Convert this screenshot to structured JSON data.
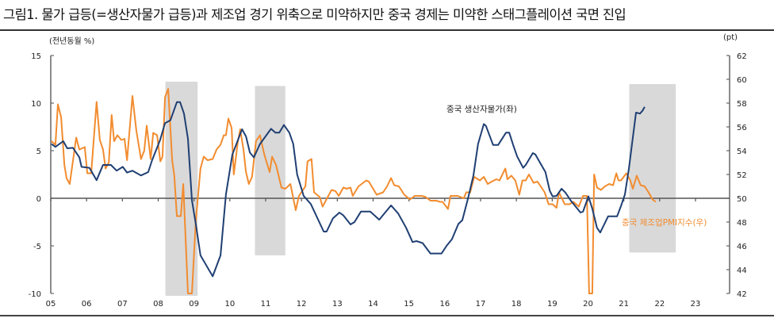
{
  "title": "그림1. 물가 급등(=생산자물가 급등)과 제조업 경기 위축으로 미약하지만 중국 경제는 미약한 스태그플레이션 국면 진입",
  "chart_data": {
    "type": "line",
    "title": "그림1. 물가 급등(=생산자물가 급등)과 제조업 경기 위축으로 미약하지만 중국 경제는 미약한 스태그플레이션 국면 진입",
    "ylabel_left": "(전년동월 %)",
    "ylabel_right": "(pt)",
    "xlim": [
      2005,
      2023
    ],
    "ylim_left": [
      -10,
      15
    ],
    "ylim_right": [
      42,
      62
    ],
    "x_ticks": [
      "05",
      "06",
      "07",
      "08",
      "09",
      "10",
      "11",
      "12",
      "13",
      "14",
      "15",
      "16",
      "17",
      "18",
      "19",
      "20",
      "21",
      "22",
      "23"
    ],
    "y_ticks_left": [
      "15",
      "10",
      "5",
      "0",
      "-5",
      "-10"
    ],
    "y_ticks_right": [
      "62",
      "60",
      "58",
      "56",
      "54",
      "52",
      "50",
      "48",
      "46",
      "44",
      "42"
    ],
    "grid": false,
    "colors": {
      "ppi": "#1f3f73",
      "pmi": "#f28c2f",
      "shade": "#d9d9d9"
    },
    "shaded_periods": [
      {
        "x": [
          2008.2,
          2009.1
        ],
        "y_left": [
          -10.25,
          12.25
        ]
      },
      {
        "x": [
          2010.7,
          2011.55
        ],
        "y_left": [
          -6.0,
          11.8
        ]
      },
      {
        "x": [
          2021.15,
          2022.45
        ],
        "y_left": [
          -5.7,
          12.0
        ]
      }
    ],
    "series": [
      {
        "name": "중국 생산자물가(좌)",
        "axis": "left",
        "color": "#1f3f73",
        "points": [
          [
            2005.02,
            5.7
          ],
          [
            2005.13,
            5.4
          ],
          [
            2005.35,
            6.0
          ],
          [
            2005.46,
            5.25
          ],
          [
            2005.62,
            5.3
          ],
          [
            2005.8,
            4.3
          ],
          [
            2005.86,
            3.3
          ],
          [
            2006.08,
            3.2
          ],
          [
            2006.28,
            1.9
          ],
          [
            2006.46,
            3.5
          ],
          [
            2006.68,
            3.5
          ],
          [
            2006.84,
            2.9
          ],
          [
            2007.01,
            3.3
          ],
          [
            2007.13,
            2.7
          ],
          [
            2007.28,
            2.9
          ],
          [
            2007.52,
            2.4
          ],
          [
            2007.72,
            2.75
          ],
          [
            2007.83,
            4.0
          ],
          [
            2008.05,
            6.1
          ],
          [
            2008.19,
            7.9
          ],
          [
            2008.34,
            8.2
          ],
          [
            2008.52,
            10.1
          ],
          [
            2008.61,
            10.1
          ],
          [
            2008.72,
            8.9
          ],
          [
            2008.83,
            6.25
          ],
          [
            2008.94,
            -0.2
          ],
          [
            2009.05,
            -2.7
          ],
          [
            2009.18,
            -6.0
          ],
          [
            2009.52,
            -8.2
          ],
          [
            2009.74,
            -6.0
          ],
          [
            2009.89,
            0.4
          ],
          [
            2010.07,
            4.6
          ],
          [
            2010.34,
            7.25
          ],
          [
            2010.45,
            6.5
          ],
          [
            2010.56,
            4.8
          ],
          [
            2010.67,
            4.3
          ],
          [
            2010.84,
            5.7
          ],
          [
            2011.15,
            7.3
          ],
          [
            2011.27,
            6.9
          ],
          [
            2011.38,
            6.9
          ],
          [
            2011.51,
            7.7
          ],
          [
            2011.66,
            6.9
          ],
          [
            2011.77,
            5.7
          ],
          [
            2011.88,
            2.5
          ],
          [
            2012.06,
            0.25
          ],
          [
            2012.26,
            -0.6
          ],
          [
            2012.62,
            -3.5
          ],
          [
            2012.7,
            -3.5
          ],
          [
            2012.88,
            -2.1
          ],
          [
            2013.06,
            -1.5
          ],
          [
            2013.17,
            -1.8
          ],
          [
            2013.37,
            -2.75
          ],
          [
            2013.48,
            -2.5
          ],
          [
            2013.66,
            -1.4
          ],
          [
            2013.92,
            -1.4
          ],
          [
            2014.17,
            -2.25
          ],
          [
            2014.5,
            -0.75
          ],
          [
            2014.7,
            -1.6
          ],
          [
            2014.92,
            -3.1
          ],
          [
            2015.1,
            -4.6
          ],
          [
            2015.21,
            -4.5
          ],
          [
            2015.38,
            -4.7
          ],
          [
            2015.6,
            -5.8
          ],
          [
            2015.91,
            -5.8
          ],
          [
            2016.05,
            -5.0
          ],
          [
            2016.2,
            -4.3
          ],
          [
            2016.38,
            -2.7
          ],
          [
            2016.49,
            -2.3
          ],
          [
            2016.65,
            0.0
          ],
          [
            2016.8,
            2.4
          ],
          [
            2016.93,
            5.7
          ],
          [
            2017.09,
            7.8
          ],
          [
            2017.15,
            7.6
          ],
          [
            2017.35,
            5.6
          ],
          [
            2017.49,
            5.6
          ],
          [
            2017.71,
            6.9
          ],
          [
            2017.8,
            6.9
          ],
          [
            2017.91,
            5.6
          ],
          [
            2018.02,
            4.4
          ],
          [
            2018.19,
            3.2
          ],
          [
            2018.26,
            3.5
          ],
          [
            2018.46,
            4.75
          ],
          [
            2018.53,
            4.6
          ],
          [
            2018.68,
            3.6
          ],
          [
            2018.81,
            2.75
          ],
          [
            2018.93,
            0.8
          ],
          [
            2019.01,
            0.2
          ],
          [
            2019.12,
            0.25
          ],
          [
            2019.26,
            1.0
          ],
          [
            2019.37,
            0.6
          ],
          [
            2019.52,
            -0.25
          ],
          [
            2019.79,
            -1.5
          ],
          [
            2019.86,
            -1.4
          ],
          [
            2020.01,
            0.2
          ],
          [
            2020.12,
            -1.1
          ],
          [
            2020.25,
            -3.1
          ],
          [
            2020.34,
            -3.6
          ],
          [
            2020.56,
            -1.9
          ],
          [
            2020.81,
            -1.9
          ],
          [
            2020.92,
            -0.8
          ],
          [
            2021.03,
            0.4
          ],
          [
            2021.14,
            3.1
          ],
          [
            2021.34,
            9.0
          ],
          [
            2021.45,
            8.9
          ],
          [
            2021.52,
            9.2
          ],
          [
            2021.58,
            9.6
          ]
        ]
      },
      {
        "name": "중국 제조업PMI지수(우)",
        "axis": "right",
        "color": "#f28c2f",
        "points": [
          [
            2005.02,
            54.8
          ],
          [
            2005.13,
            54.5
          ],
          [
            2005.2,
            57.9
          ],
          [
            2005.29,
            56.8
          ],
          [
            2005.38,
            52.8
          ],
          [
            2005.44,
            51.7
          ],
          [
            2005.53,
            51.2
          ],
          [
            2005.71,
            55.1
          ],
          [
            2005.8,
            54.1
          ],
          [
            2005.95,
            54.3
          ],
          [
            2006.02,
            52.1
          ],
          [
            2006.13,
            52.1
          ],
          [
            2006.28,
            58.1
          ],
          [
            2006.37,
            54.9
          ],
          [
            2006.46,
            54.1
          ],
          [
            2006.53,
            52.5
          ],
          [
            2006.62,
            53.0
          ],
          [
            2006.7,
            57.0
          ],
          [
            2006.77,
            54.8
          ],
          [
            2006.86,
            55.3
          ],
          [
            2006.97,
            54.9
          ],
          [
            2007.06,
            55.0
          ],
          [
            2007.13,
            53.2
          ],
          [
            2007.28,
            58.6
          ],
          [
            2007.39,
            55.7
          ],
          [
            2007.52,
            53.3
          ],
          [
            2007.61,
            54.0
          ],
          [
            2007.68,
            56.1
          ],
          [
            2007.79,
            53.3
          ],
          [
            2007.86,
            55.5
          ],
          [
            2007.97,
            55.3
          ],
          [
            2008.06,
            53.1
          ],
          [
            2008.12,
            53.5
          ],
          [
            2008.19,
            58.5
          ],
          [
            2008.28,
            59.2
          ],
          [
            2008.39,
            53.2
          ],
          [
            2008.45,
            51.9
          ],
          [
            2008.52,
            48.5
          ],
          [
            2008.63,
            48.5
          ],
          [
            2008.7,
            51.2
          ],
          [
            2008.83,
            42.0
          ],
          [
            2008.94,
            42.0
          ],
          [
            2009.05,
            48.1
          ],
          [
            2009.18,
            52.5
          ],
          [
            2009.27,
            53.5
          ],
          [
            2009.38,
            53.2
          ],
          [
            2009.52,
            53.3
          ],
          [
            2009.63,
            54.1
          ],
          [
            2009.74,
            54.5
          ],
          [
            2009.83,
            55.3
          ],
          [
            2009.89,
            55.3
          ],
          [
            2009.96,
            56.7
          ],
          [
            2010.05,
            55.9
          ],
          [
            2010.11,
            52.0
          ],
          [
            2010.22,
            54.7
          ],
          [
            2010.29,
            55.8
          ],
          [
            2010.38,
            54.1
          ],
          [
            2010.45,
            52.2
          ],
          [
            2010.53,
            51.2
          ],
          [
            2010.62,
            51.8
          ],
          [
            2010.73,
            54.8
          ],
          [
            2010.84,
            55.3
          ],
          [
            2010.96,
            53.7
          ],
          [
            2011.11,
            52.2
          ],
          [
            2011.18,
            53.5
          ],
          [
            2011.29,
            52.8
          ],
          [
            2011.44,
            50.9
          ],
          [
            2011.55,
            50.8
          ],
          [
            2011.69,
            51.2
          ],
          [
            2011.84,
            49.0
          ],
          [
            2011.93,
            50.2
          ],
          [
            2012.11,
            51.0
          ],
          [
            2012.17,
            53.1
          ],
          [
            2012.28,
            53.3
          ],
          [
            2012.35,
            50.5
          ],
          [
            2012.51,
            50.1
          ],
          [
            2012.59,
            49.3
          ],
          [
            2012.84,
            50.7
          ],
          [
            2012.95,
            50.6
          ],
          [
            2013.04,
            50.2
          ],
          [
            2013.17,
            50.9
          ],
          [
            2013.26,
            50.8
          ],
          [
            2013.37,
            50.9
          ],
          [
            2013.43,
            50.2
          ],
          [
            2013.59,
            51.0
          ],
          [
            2013.81,
            51.5
          ],
          [
            2013.88,
            51.4
          ],
          [
            2014.1,
            50.3
          ],
          [
            2014.28,
            50.5
          ],
          [
            2014.39,
            51.0
          ],
          [
            2014.5,
            51.7
          ],
          [
            2014.59,
            51.1
          ],
          [
            2014.72,
            51.0
          ],
          [
            2014.87,
            50.3
          ],
          [
            2015.03,
            49.9
          ],
          [
            2015.16,
            50.2
          ],
          [
            2015.36,
            50.2
          ],
          [
            2015.47,
            50.1
          ],
          [
            2015.6,
            49.8
          ],
          [
            2015.76,
            49.8
          ],
          [
            2015.87,
            49.7
          ],
          [
            2015.94,
            49.7
          ],
          [
            2016.09,
            49.1
          ],
          [
            2016.16,
            50.2
          ],
          [
            2016.36,
            50.2
          ],
          [
            2016.53,
            50.0
          ],
          [
            2016.6,
            50.5
          ],
          [
            2016.71,
            50.5
          ],
          [
            2016.82,
            51.8
          ],
          [
            2016.98,
            51.5
          ],
          [
            2017.09,
            51.8
          ],
          [
            2017.2,
            51.2
          ],
          [
            2017.31,
            51.4
          ],
          [
            2017.44,
            51.6
          ],
          [
            2017.53,
            51.5
          ],
          [
            2017.69,
            52.5
          ],
          [
            2017.75,
            51.6
          ],
          [
            2017.86,
            51.9
          ],
          [
            2017.97,
            51.5
          ],
          [
            2018.08,
            50.3
          ],
          [
            2018.17,
            51.5
          ],
          [
            2018.26,
            51.5
          ],
          [
            2018.35,
            52.0
          ],
          [
            2018.48,
            51.3
          ],
          [
            2018.59,
            51.4
          ],
          [
            2018.79,
            50.5
          ],
          [
            2018.9,
            49.5
          ],
          [
            2019.01,
            49.5
          ],
          [
            2019.12,
            49.2
          ],
          [
            2019.19,
            50.5
          ],
          [
            2019.35,
            49.5
          ],
          [
            2019.48,
            49.5
          ],
          [
            2019.59,
            49.7
          ],
          [
            2019.74,
            49.3
          ],
          [
            2019.86,
            50.2
          ],
          [
            2019.97,
            50.2
          ],
          [
            2020.03,
            42.0
          ],
          [
            2020.12,
            42.0
          ],
          [
            2020.17,
            52.0
          ],
          [
            2020.25,
            50.9
          ],
          [
            2020.36,
            50.7
          ],
          [
            2020.47,
            51.0
          ],
          [
            2020.59,
            51.2
          ],
          [
            2020.7,
            51.1
          ],
          [
            2020.79,
            52.1
          ],
          [
            2020.85,
            51.5
          ],
          [
            2020.92,
            51.5
          ],
          [
            2021.07,
            52.1
          ],
          [
            2021.18,
            51.5
          ],
          [
            2021.25,
            50.8
          ],
          [
            2021.36,
            51.9
          ],
          [
            2021.47,
            51.1
          ],
          [
            2021.58,
            51.0
          ],
          [
            2021.69,
            50.5
          ],
          [
            2021.8,
            49.9
          ],
          [
            2021.89,
            49.7
          ]
        ]
      }
    ]
  }
}
